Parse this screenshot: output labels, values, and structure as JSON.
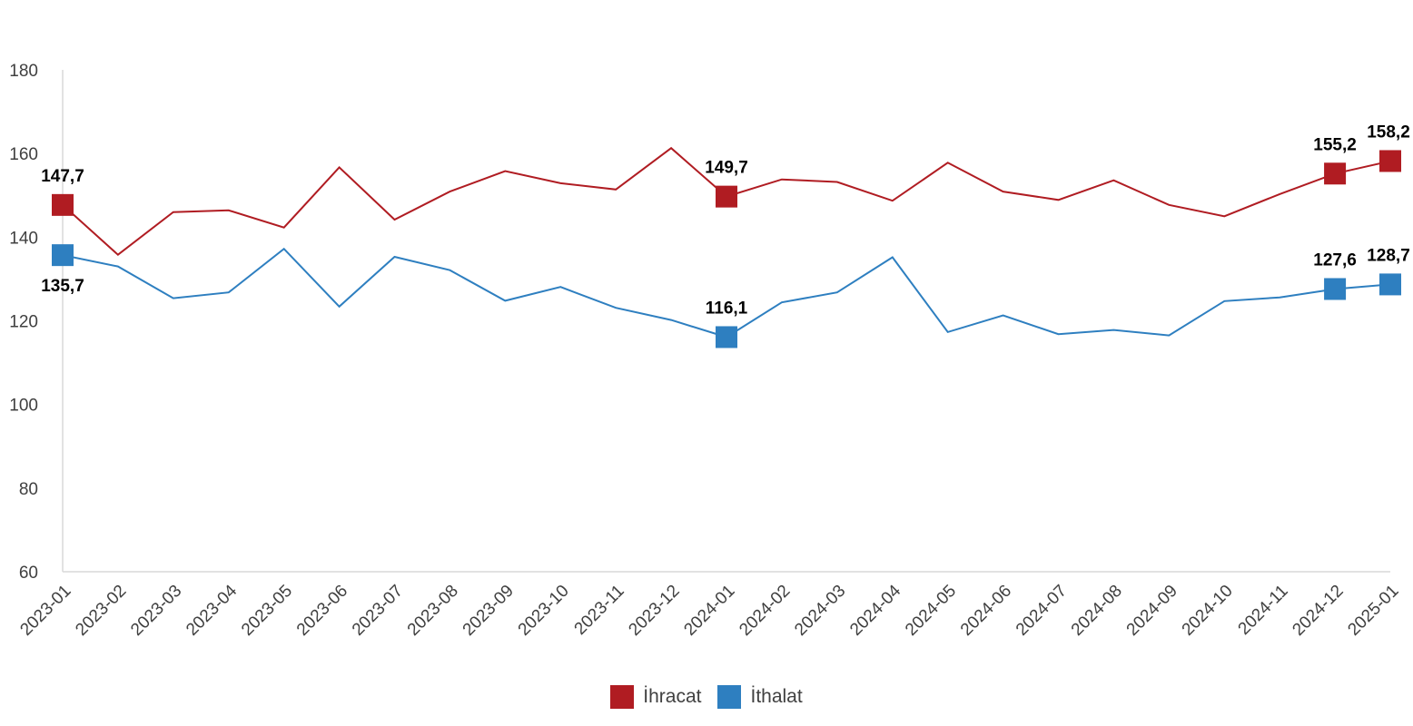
{
  "chart_data": {
    "type": "line",
    "title": "",
    "xlabel": "",
    "ylabel": "",
    "ylim": [
      60,
      180
    ],
    "yticks": [
      "60",
      "80",
      "100",
      "120",
      "140",
      "160",
      "180"
    ],
    "grid": false,
    "legend_position": "bottom-center",
    "x": [
      "2023-01",
      "2023-02",
      "2023-03",
      "2023-04",
      "2023-05",
      "2023-06",
      "2023-07",
      "2023-08",
      "2023-09",
      "2023-10",
      "2023-11",
      "2023-12",
      "2024-01",
      "2024-02",
      "2024-03",
      "2024-04",
      "2024-05",
      "2024-06",
      "2024-07",
      "2024-08",
      "2024-09",
      "2024-10",
      "2024-11",
      "2024-12",
      "2025-01"
    ],
    "series": [
      {
        "name": "İhracat",
        "color": "#b01c22",
        "values": [
          147.7,
          135.8,
          146.0,
          146.4,
          142.3,
          156.7,
          144.2,
          150.9,
          155.8,
          152.9,
          151.4,
          161.3,
          149.7,
          153.8,
          153.2,
          148.7,
          157.8,
          150.9,
          148.9,
          153.6,
          147.7,
          145.0,
          150.3,
          155.2,
          158.2
        ],
        "labeled": [
          {
            "index": 0,
            "text": "147,7"
          },
          {
            "index": 12,
            "text": "149,7"
          },
          {
            "index": 23,
            "text": "155,2"
          },
          {
            "index": 24,
            "text": "158,2"
          }
        ]
      },
      {
        "name": "İthalat",
        "color": "#2e7fc0",
        "values": [
          135.7,
          133.0,
          125.4,
          126.8,
          137.2,
          123.4,
          135.3,
          132.1,
          124.8,
          128.1,
          123.1,
          120.2,
          116.1,
          124.4,
          126.8,
          135.2,
          117.3,
          121.3,
          116.8,
          117.8,
          116.5,
          124.7,
          125.6,
          127.6,
          128.7
        ],
        "labeled": [
          {
            "index": 0,
            "text": "135,7"
          },
          {
            "index": 12,
            "text": "116,1"
          },
          {
            "index": 23,
            "text": "127,6"
          },
          {
            "index": 24,
            "text": "128,7"
          }
        ]
      }
    ]
  }
}
